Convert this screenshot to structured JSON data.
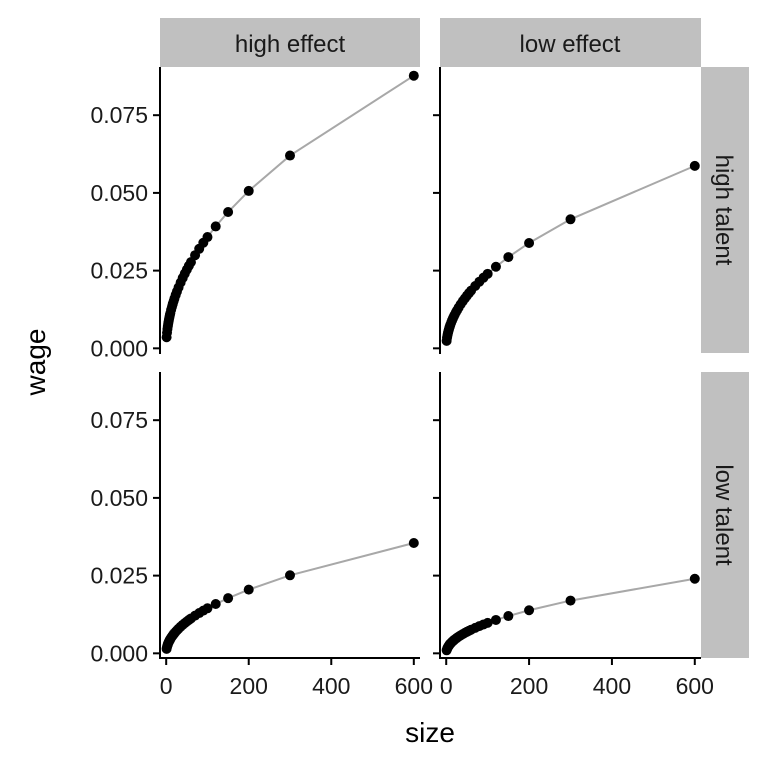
{
  "chart_data": {
    "type": "scatter",
    "xlabel": "size",
    "ylabel": "wage",
    "xlim": [
      -15,
      615
    ],
    "ylim": [
      -0.0015,
      0.0905
    ],
    "x_ticks": [
      0,
      200,
      400,
      600
    ],
    "x_tick_labels": [
      "0",
      "200",
      "400",
      "600"
    ],
    "y_ticks": [
      0,
      0.025,
      0.05,
      0.075
    ],
    "y_tick_labels": [
      "0.000",
      "0.025",
      "0.050",
      "0.075"
    ],
    "grid": false,
    "line_color": "#a8a8a8",
    "point_color": "#000000",
    "strip_color": "#c0c0c0",
    "facet_cols": [
      "high effect",
      "low effect"
    ],
    "facet_rows": [
      "high talent",
      "low talent"
    ],
    "x": [
      1,
      2,
      3,
      4,
      5,
      6,
      7,
      8,
      9,
      10,
      12,
      14,
      16,
      18,
      20,
      23,
      26,
      30,
      35,
      40,
      45,
      50,
      55,
      60,
      70,
      80,
      90,
      100,
      120,
      150,
      200,
      300,
      600
    ],
    "panels": [
      {
        "row": "high talent",
        "col": "high effect",
        "anchor": [
          600,
          0.0877
        ]
      },
      {
        "row": "high talent",
        "col": "low effect",
        "anchor": [
          600,
          0.0587
        ]
      },
      {
        "row": "low talent",
        "col": "high effect",
        "anchor": [
          600,
          0.0355
        ]
      },
      {
        "row": "low talent",
        "col": "low effect",
        "anchor": [
          600,
          0.024
        ]
      }
    ]
  }
}
